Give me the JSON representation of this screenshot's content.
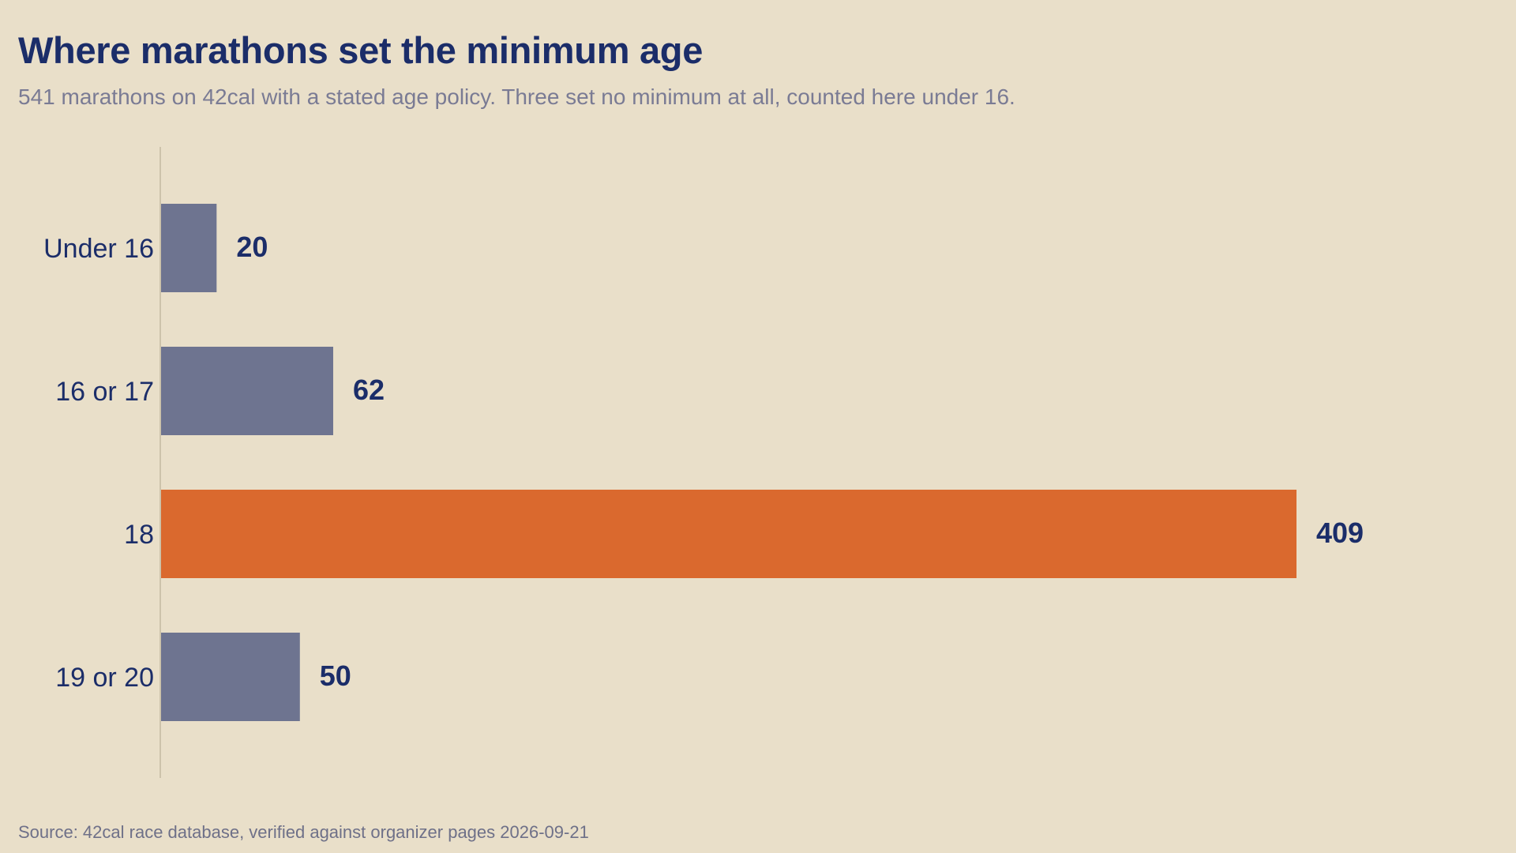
{
  "chart_data": {
    "type": "bar",
    "orientation": "horizontal",
    "title": "Where marathons set the minimum age",
    "subtitle": "541 marathons on 42cal with a stated age policy. Three set no minimum at all, counted here under 16.",
    "categories": [
      "Under 16",
      "16 or 17",
      "18",
      "19 or 20"
    ],
    "values": [
      20,
      62,
      409,
      50
    ],
    "highlight_category": "18",
    "colors": {
      "default_bar": "#6e7490",
      "highlight_bar": "#da692e",
      "axis": "#cdc3ab"
    },
    "xlim": [
      0,
      409
    ],
    "grid": false,
    "legend": "none",
    "source": "Source: 42cal race database, verified against organizer pages 2026-09-21"
  }
}
